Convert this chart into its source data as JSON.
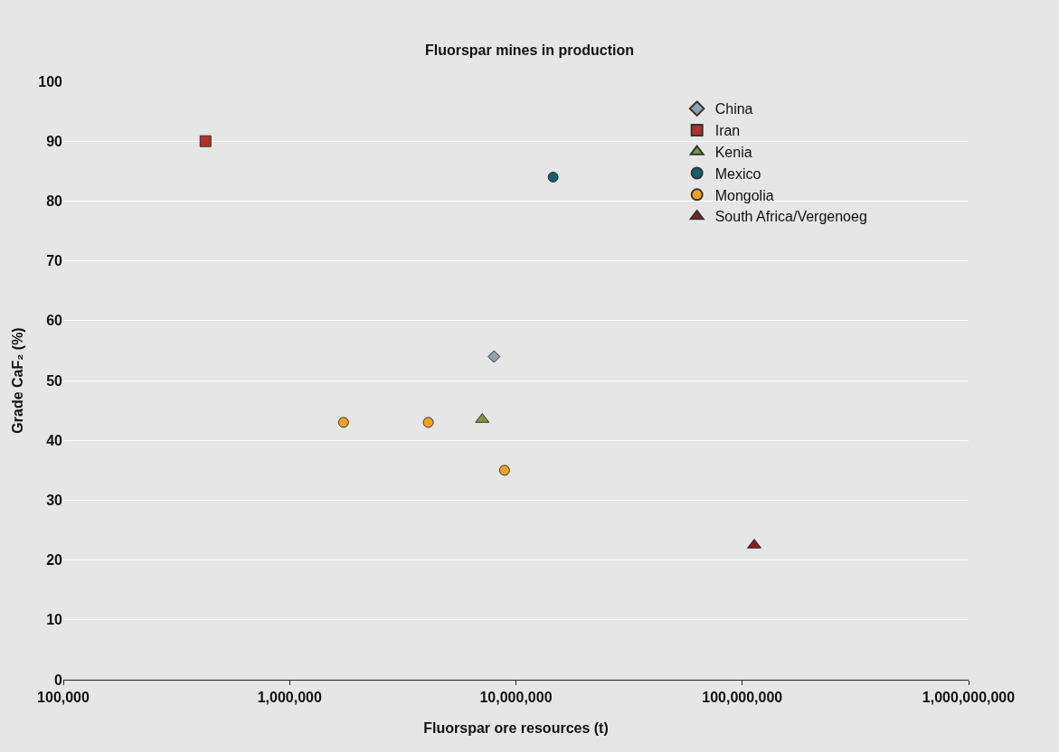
{
  "chart_data": {
    "type": "scatter",
    "title": "Fluorspar mines in production",
    "xlabel": "Fluorspar ore resources (t)",
    "ylabel": "Grade CaF₂ (%)",
    "log": "x",
    "grid": "y",
    "legend": "top right",
    "xlim": [
      100000,
      1000000000
    ],
    "xticks": [
      {
        "value": 100000,
        "label": "100,000"
      },
      {
        "value": 1000000,
        "label": "1,000,000"
      },
      {
        "value": 10000000,
        "label": "10,000,000"
      },
      {
        "value": 100000000,
        "label": "100,000,000"
      },
      {
        "value": 1000000000,
        "label": "1,000,000,000"
      }
    ],
    "ylim": [
      0,
      100
    ],
    "yticks": [
      0,
      10,
      20,
      30,
      40,
      50,
      60,
      70,
      80,
      90,
      100
    ],
    "series": [
      {
        "name": "China",
        "color": "#8fa3b0",
        "marker": "diamond",
        "x": [
          8000000
        ],
        "values": [
          54
        ]
      },
      {
        "name": "Iran",
        "color": "#b0302a",
        "marker": "square",
        "x": [
          425000
        ],
        "values": [
          90
        ]
      },
      {
        "name": "Kenia",
        "color": "#7a9a3a",
        "marker": "triangle",
        "x": [
          7100000
        ],
        "values": [
          43.5
        ]
      },
      {
        "name": "Mexico",
        "color": "#13606e",
        "marker": "circle",
        "x": [
          14600000
        ],
        "values": [
          84
        ]
      },
      {
        "name": "Mongolia",
        "color": "#f5a020",
        "marker": "circle",
        "x": [
          1730000,
          4100000,
          8900000
        ],
        "values": [
          43,
          43,
          35
        ]
      },
      {
        "name": "South Africa/Vergenoeg",
        "color": "#8b1c1c",
        "marker": "triangle",
        "x": [
          113000000
        ],
        "values": [
          22.5
        ]
      }
    ]
  }
}
